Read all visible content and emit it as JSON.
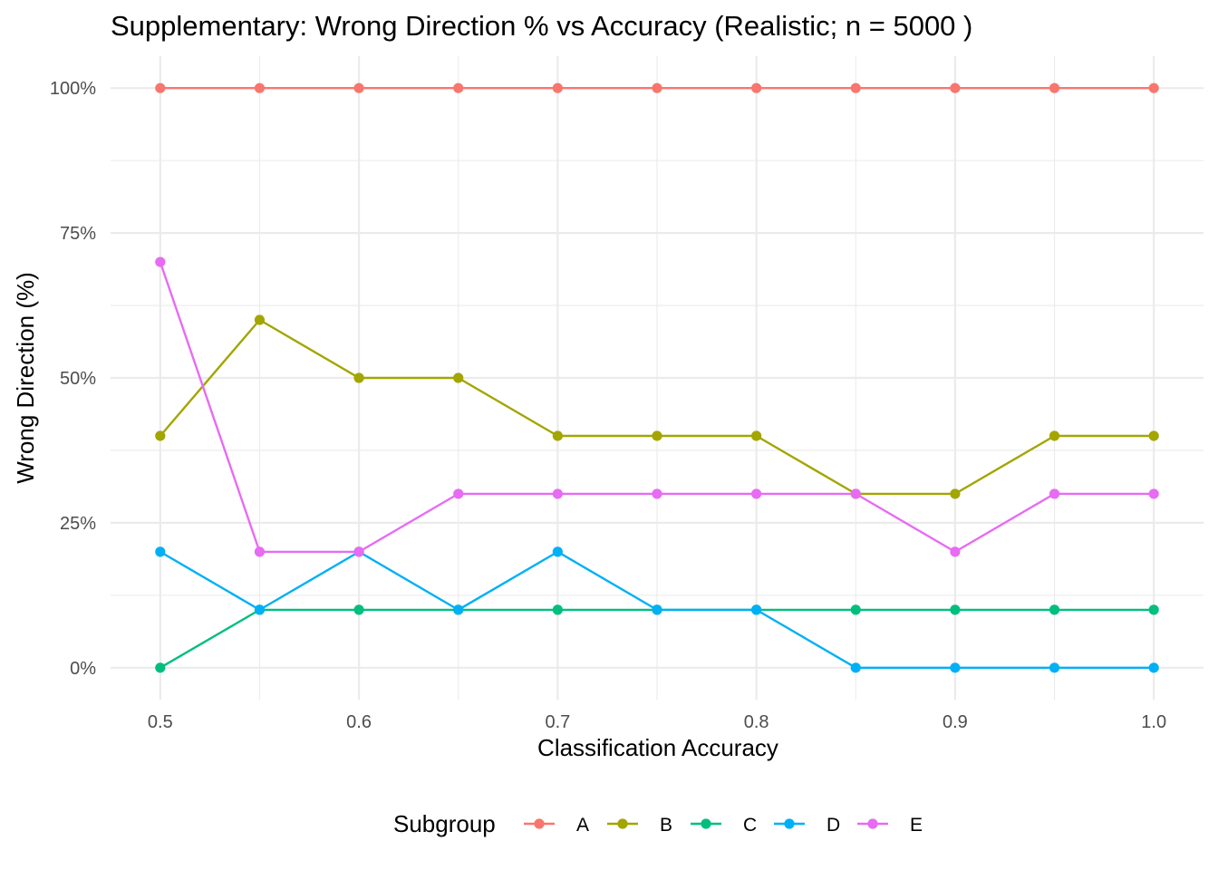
{
  "chart_data": {
    "type": "line",
    "title": "Supplementary: Wrong Direction % vs Accuracy (Realistic; n = 5000 )",
    "xlabel": "Classification Accuracy",
    "ylabel": "Wrong Direction (%)",
    "x": [
      0.5,
      0.55,
      0.6,
      0.65,
      0.7,
      0.75,
      0.8,
      0.85,
      0.9,
      0.95,
      1.0
    ],
    "xlim": [
      0.475,
      1.025
    ],
    "ylim": [
      -5.5,
      105.5
    ],
    "x_ticks": [
      0.5,
      0.6,
      0.7,
      0.8,
      0.9,
      1.0
    ],
    "x_tick_labels": [
      "0.5",
      "0.6",
      "0.7",
      "0.8",
      "0.9",
      "1.0"
    ],
    "x_minor_ticks": [
      0.55,
      0.65,
      0.75,
      0.85,
      0.95
    ],
    "y_ticks": [
      0,
      25,
      50,
      75,
      100
    ],
    "y_tick_labels": [
      "0%",
      "25%",
      "50%",
      "75%",
      "100%"
    ],
    "y_minor_ticks": [
      12.5,
      37.5,
      62.5,
      87.5
    ],
    "grid": true,
    "legend": {
      "title": "Subgroup",
      "position": "bottom"
    },
    "series": [
      {
        "name": "A",
        "color": "#F8766D",
        "values": [
          100,
          100,
          100,
          100,
          100,
          100,
          100,
          100,
          100,
          100,
          100
        ]
      },
      {
        "name": "B",
        "color": "#A3A500",
        "values": [
          40,
          60,
          50,
          50,
          40,
          40,
          40,
          30,
          30,
          40,
          40
        ]
      },
      {
        "name": "C",
        "color": "#00BF7D",
        "values": [
          0,
          10,
          10,
          10,
          10,
          10,
          10,
          10,
          10,
          10,
          10
        ]
      },
      {
        "name": "D",
        "color": "#00B0F6",
        "values": [
          20,
          10,
          20,
          10,
          20,
          10,
          10,
          0,
          0,
          0,
          0
        ]
      },
      {
        "name": "E",
        "color": "#E76BF3",
        "values": [
          70,
          20,
          20,
          30,
          30,
          30,
          30,
          30,
          20,
          30,
          30
        ]
      }
    ]
  }
}
